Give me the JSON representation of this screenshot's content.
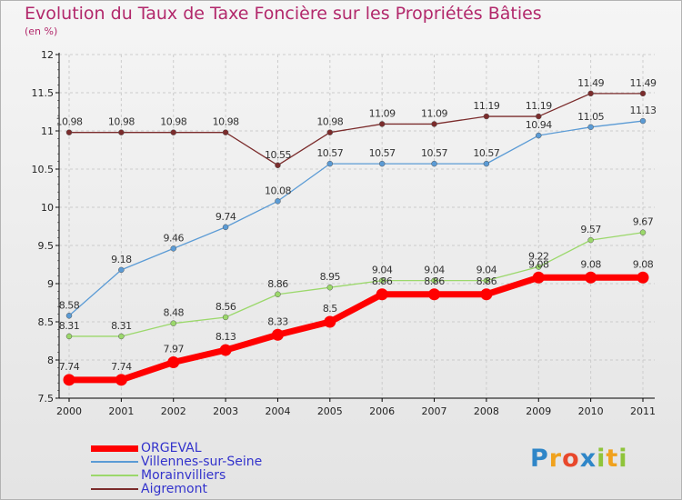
{
  "header": {
    "title": "Evolution du Taux de Taxe Foncière sur les Propriétés Bâties",
    "subtitle": "(en %)"
  },
  "colors": {
    "title": "#b2286b",
    "legend_text": "#3333cc",
    "grid": "#cccccc",
    "axis": "#000000"
  },
  "logo": {
    "text": "Proxiti",
    "letter_colors": [
      "#2f86c8",
      "#f0a21e",
      "#e8482c",
      "#2f86c8",
      "#8fc43a",
      "#f0a21e",
      "#8fc43a"
    ]
  },
  "chart_data": {
    "type": "line",
    "title": "Evolution du Taux de Taxe Foncière sur les Propriétés Bâties",
    "subtitle": "(en %)",
    "x": [
      "2000",
      "2001",
      "2002",
      "2003",
      "2004",
      "2005",
      "2006",
      "2007",
      "2008",
      "2009",
      "2010",
      "2011"
    ],
    "ylim": [
      7.5,
      12
    ],
    "yticks": [
      7.5,
      8,
      8.5,
      9,
      9.5,
      10,
      10.5,
      11,
      11.5,
      12
    ],
    "grid": true,
    "legend_position": "bottom-left",
    "series": [
      {
        "name": "ORGEVAL",
        "color": "#ff0000",
        "values": [
          7.74,
          7.74,
          7.97,
          8.13,
          8.33,
          8.5,
          8.86,
          8.86,
          8.86,
          9.08,
          9.08,
          9.08
        ],
        "labels": [
          "7.74",
          "7.74",
          "7.97",
          "8.13",
          "8.33",
          "8.5",
          "8.86",
          "8.86",
          "8.86",
          "9.08",
          "9.08",
          "9.08"
        ]
      },
      {
        "name": "Villennes-sur-Seine",
        "color": "#5b9bd5",
        "values": [
          8.58,
          9.18,
          9.46,
          9.74,
          10.08,
          10.57,
          10.57,
          10.57,
          10.57,
          10.94,
          11.05,
          11.13
        ],
        "labels": [
          "8.58",
          "9.18",
          "9.46",
          "9.74",
          "10.08",
          "10.57",
          "10.57",
          "10.57",
          "10.57",
          "10.94",
          "11.05",
          "11.13"
        ]
      },
      {
        "name": "Morainvilliers",
        "color": "#9bd86b",
        "values": [
          8.31,
          8.31,
          8.48,
          8.56,
          8.86,
          8.95,
          9.04,
          9.04,
          9.04,
          9.22,
          9.57,
          9.67
        ],
        "labels": [
          "8.31",
          "8.31",
          "8.48",
          "8.56",
          "8.86",
          "8.95",
          "9.04",
          "9.04",
          "9.04",
          "9.22",
          "9.57",
          "9.67"
        ]
      },
      {
        "name": "Aigremont",
        "color": "#7b2c2c",
        "values": [
          10.98,
          10.98,
          10.98,
          10.98,
          10.55,
          10.98,
          11.09,
          11.09,
          11.19,
          11.19,
          11.49,
          11.49
        ],
        "labels": [
          "10.98",
          "10.98",
          "10.98",
          "10.98",
          "10.55",
          "10.98",
          "11.09",
          "11.09",
          "11.19",
          "11.19",
          "11.49",
          "11.49"
        ]
      }
    ]
  }
}
